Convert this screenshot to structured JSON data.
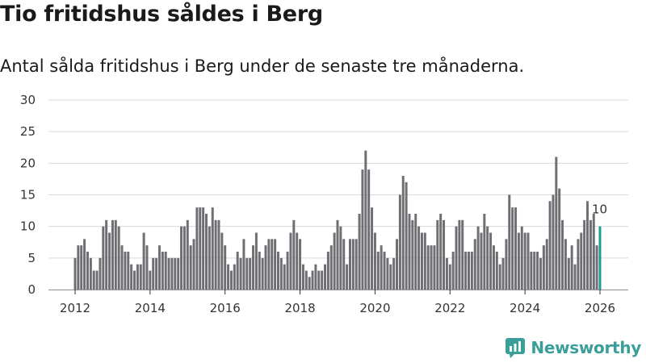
{
  "header": {
    "title": "Tio fritidshus såldes i Berg",
    "subtitle": "Antal sålda fritidshus i Berg under de senaste tre månaderna."
  },
  "brand": {
    "name": "Newsworthy"
  },
  "colors": {
    "bar": "#6f6e73",
    "highlight": "#1d9a93",
    "grid": "#d9d9d9",
    "brand": "#3a9e99"
  },
  "chart_data": {
    "type": "bar",
    "title": "",
    "xlabel": "",
    "ylabel": "",
    "ylim": [
      0,
      30
    ],
    "yticks": [
      0,
      5,
      10,
      15,
      20,
      25,
      30
    ],
    "xtick_labels": [
      "2012",
      "2014",
      "2016",
      "2018",
      "2020",
      "2022",
      "2024",
      "2026"
    ],
    "grid": true,
    "start": "2012-01",
    "end": "2026-01",
    "highlight_last": true,
    "last_label": "10",
    "values": [
      5,
      7,
      7,
      8,
      6,
      5,
      3,
      3,
      5,
      10,
      11,
      9,
      11,
      11,
      10,
      7,
      6,
      6,
      4,
      3,
      4,
      4,
      9,
      7,
      3,
      5,
      5,
      7,
      6,
      6,
      5,
      5,
      5,
      5,
      10,
      10,
      11,
      7,
      8,
      13,
      13,
      13,
      12,
      10,
      13,
      11,
      11,
      9,
      7,
      4,
      3,
      4,
      6,
      5,
      8,
      5,
      5,
      7,
      9,
      6,
      5,
      7,
      8,
      8,
      8,
      6,
      5,
      4,
      6,
      9,
      11,
      9,
      8,
      4,
      3,
      2,
      3,
      4,
      3,
      3,
      4,
      6,
      7,
      9,
      11,
      10,
      8,
      4,
      8,
      8,
      8,
      12,
      19,
      22,
      19,
      13,
      9,
      6,
      7,
      6,
      5,
      4,
      5,
      8,
      15,
      18,
      17,
      12,
      11,
      12,
      10,
      9,
      9,
      7,
      7,
      7,
      11,
      12,
      11,
      5,
      4,
      6,
      10,
      11,
      11,
      6,
      6,
      6,
      8,
      10,
      9,
      12,
      10,
      9,
      7,
      6,
      4,
      5,
      8,
      15,
      13,
      13,
      9,
      10,
      9,
      9,
      6,
      6,
      6,
      5,
      7,
      8,
      14,
      15,
      21,
      16,
      11,
      8,
      5,
      7,
      4,
      8,
      9,
      11,
      14,
      11,
      12,
      7,
      10
    ]
  }
}
